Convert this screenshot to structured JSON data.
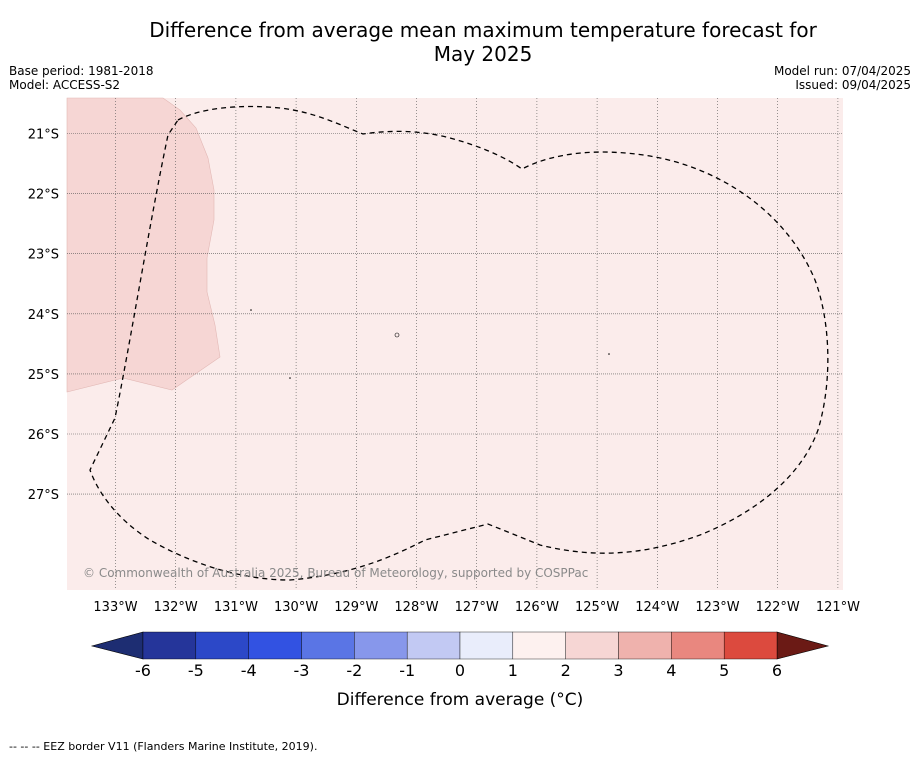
{
  "title_line1": "Difference from average mean maximum temperature forecast for",
  "title_line2": "May 2025",
  "meta_left": {
    "base_period": "Base period: 1981-2018",
    "model": "Model: ACCESS-S2"
  },
  "meta_right": {
    "model_run": "Model run: 07/04/2025",
    "issued": "Issued: 09/04/2025"
  },
  "map": {
    "lon_labels": [
      "133°W",
      "132°W",
      "131°W",
      "130°W",
      "129°W",
      "128°W",
      "127°W",
      "126°W",
      "125°W",
      "124°W",
      "123°W",
      "122°W",
      "121°W"
    ],
    "lat_labels": [
      "21°S",
      "22°S",
      "23°S",
      "24°S",
      "25°S",
      "26°S",
      "27°S"
    ],
    "copyright": "© Commonwealth of Australia 2025, Bureau of Meteorology, supported by COSPPac",
    "colors": {
      "background_fill": "#fbeceb",
      "anomaly_1_2": "#f6d6d4"
    }
  },
  "colorbar": {
    "ticks": [
      "-6",
      "-5",
      "-4",
      "-3",
      "-2",
      "-1",
      "0",
      "1",
      "2",
      "3",
      "4",
      "5",
      "6"
    ],
    "colors": [
      "#25359a",
      "#2c48c8",
      "#3252e2",
      "#5a75e5",
      "#8797eb",
      "#c2c9f3",
      "#e9edfb",
      "#fdf1ef",
      "#f6d6d4",
      "#efb2ad",
      "#e9877f",
      "#dc4a3e",
      "#a8281f"
    ],
    "under_color": "#1d2d72",
    "over_color": "#6b1a15",
    "label": "Difference from average (°C)"
  },
  "footer": "--  --  -- EEZ border V11 (Flanders Marine Institute, 2019)."
}
